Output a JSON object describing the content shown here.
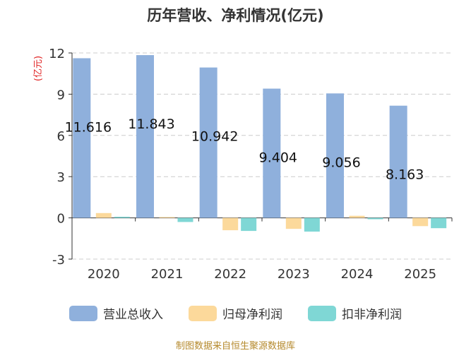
{
  "chart_data": {
    "type": "bar",
    "title": "历年营收、净利情况(亿元)",
    "ylabel": "(亿元)",
    "categories": [
      "2020",
      "2021",
      "2022",
      "2023",
      "2024",
      "2025"
    ],
    "ylim": [
      -3,
      12
    ],
    "yticks": [
      -3,
      0,
      3,
      6,
      9,
      12
    ],
    "grid": true,
    "legend_position": "bottom",
    "series": [
      {
        "name": "营业总收入",
        "values": [
          11.616,
          11.843,
          10.942,
          9.404,
          9.056,
          8.163
        ],
        "color": "#8fb0dc",
        "labels": [
          "11.616",
          "11.843",
          "10.942",
          "9.404",
          "9.056",
          "8.163"
        ]
      },
      {
        "name": "归母净利润",
        "values": [
          0.35,
          0.06,
          -0.9,
          -0.8,
          0.15,
          -0.6
        ],
        "color": "#fcd99b"
      },
      {
        "name": "扣非净利润",
        "values": [
          0.08,
          -0.3,
          -0.95,
          -1.0,
          -0.1,
          -0.75
        ],
        "color": "#7fd7d5"
      }
    ]
  },
  "source": "制图数据来自恒生聚源数据库"
}
